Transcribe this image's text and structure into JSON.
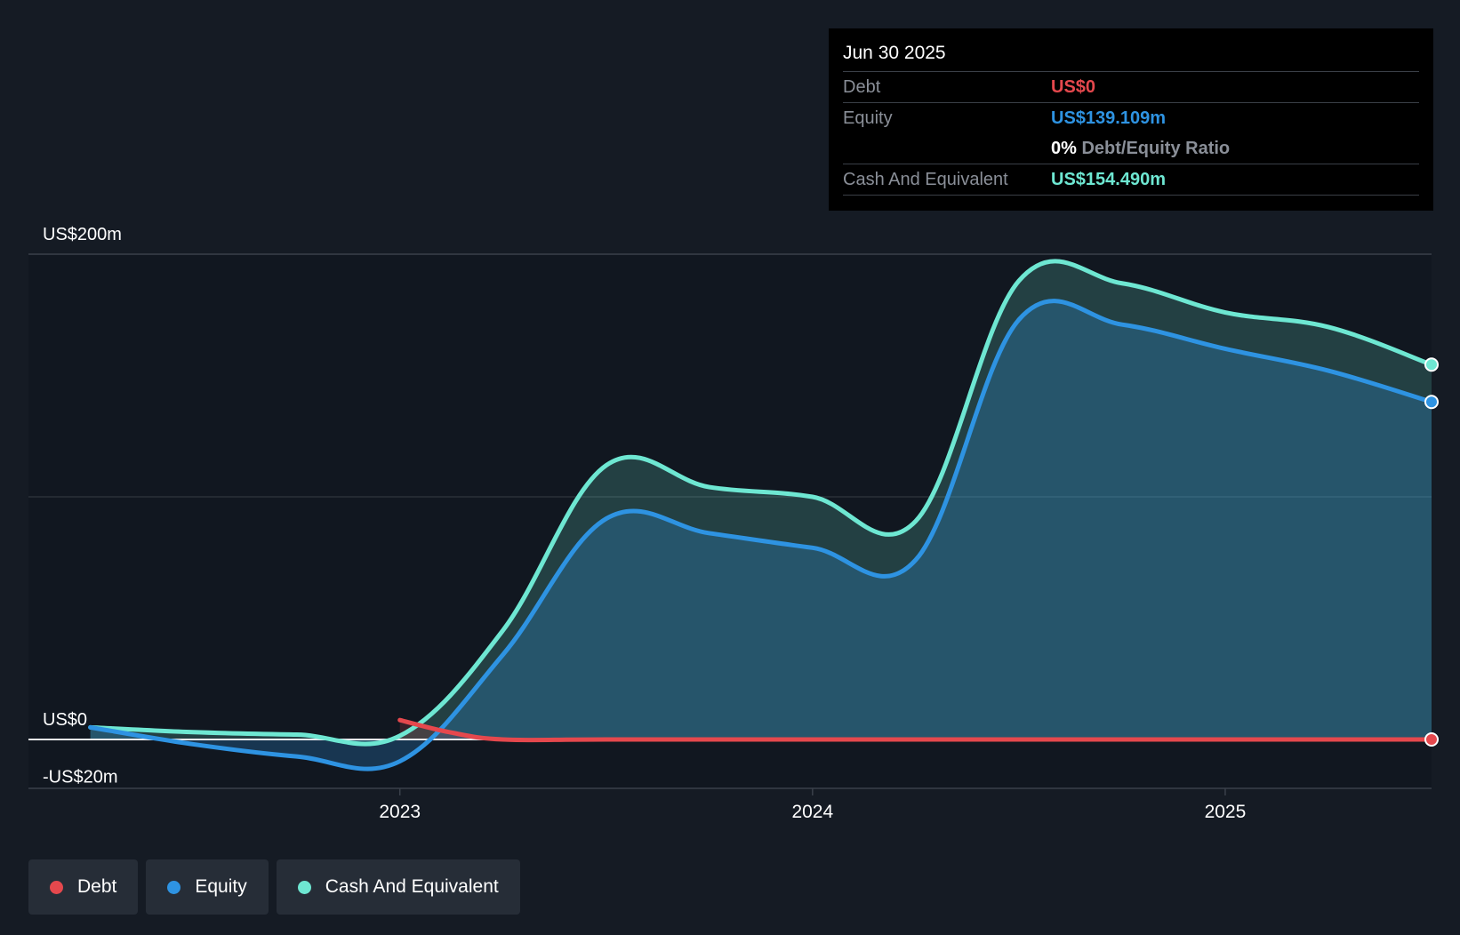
{
  "tooltip": {
    "date": "Jun 30 2025",
    "debt_label": "Debt",
    "debt_value": "US$0",
    "equity_label": "Equity",
    "equity_value": "US$139.109m",
    "ratio_value": "0%",
    "ratio_label": "Debt/Equity Ratio",
    "cash_label": "Cash And Equivalent",
    "cash_value": "US$154.490m"
  },
  "legend": [
    {
      "label": "Debt",
      "color": "#e5484d"
    },
    {
      "label": "Equity",
      "color": "#2e93e2"
    },
    {
      "label": "Cash And Equivalent",
      "color": "#6ee7d2"
    }
  ],
  "chart_data": {
    "type": "area",
    "title": "",
    "xlabel": "",
    "ylabel": "",
    "ylim": [
      -20,
      200
    ],
    "y_tick_labels": [
      "US$200m",
      "US$0",
      "-US$20m"
    ],
    "x_tick_labels": [
      "2023",
      "2024",
      "2025"
    ],
    "x_ticks": [
      2023.0,
      2024.0,
      2025.0
    ],
    "xlim": [
      2022.1,
      2025.5
    ],
    "grid": true,
    "legend_position": "bottom-left",
    "series": [
      {
        "name": "Debt",
        "color": "#e5484d",
        "points": [
          [
            2023.0,
            8
          ],
          [
            2023.12,
            3
          ],
          [
            2023.25,
            0
          ],
          [
            2023.5,
            0
          ],
          [
            2024.0,
            0
          ],
          [
            2024.5,
            0
          ],
          [
            2025.0,
            0
          ],
          [
            2025.5,
            0
          ]
        ]
      },
      {
        "name": "Equity",
        "color": "#2e93e2",
        "points": [
          [
            2022.25,
            5
          ],
          [
            2022.5,
            -2
          ],
          [
            2022.75,
            -7
          ],
          [
            2023.0,
            -9
          ],
          [
            2023.25,
            35
          ],
          [
            2023.5,
            91
          ],
          [
            2023.75,
            85
          ],
          [
            2024.0,
            79
          ],
          [
            2024.25,
            74
          ],
          [
            2024.5,
            173
          ],
          [
            2024.75,
            171
          ],
          [
            2025.0,
            161
          ],
          [
            2025.25,
            152
          ],
          [
            2025.5,
            139.109
          ]
        ]
      },
      {
        "name": "Cash And Equivalent",
        "color": "#6ee7d2",
        "points": [
          [
            2022.25,
            5
          ],
          [
            2022.5,
            3
          ],
          [
            2022.75,
            2
          ],
          [
            2023.0,
            1.5
          ],
          [
            2023.25,
            45
          ],
          [
            2023.5,
            113
          ],
          [
            2023.75,
            104
          ],
          [
            2024.0,
            100
          ],
          [
            2024.25,
            90
          ],
          [
            2024.5,
            189
          ],
          [
            2024.75,
            188
          ],
          [
            2025.0,
            176
          ],
          [
            2025.25,
            170
          ],
          [
            2025.5,
            154.49
          ]
        ]
      }
    ]
  }
}
